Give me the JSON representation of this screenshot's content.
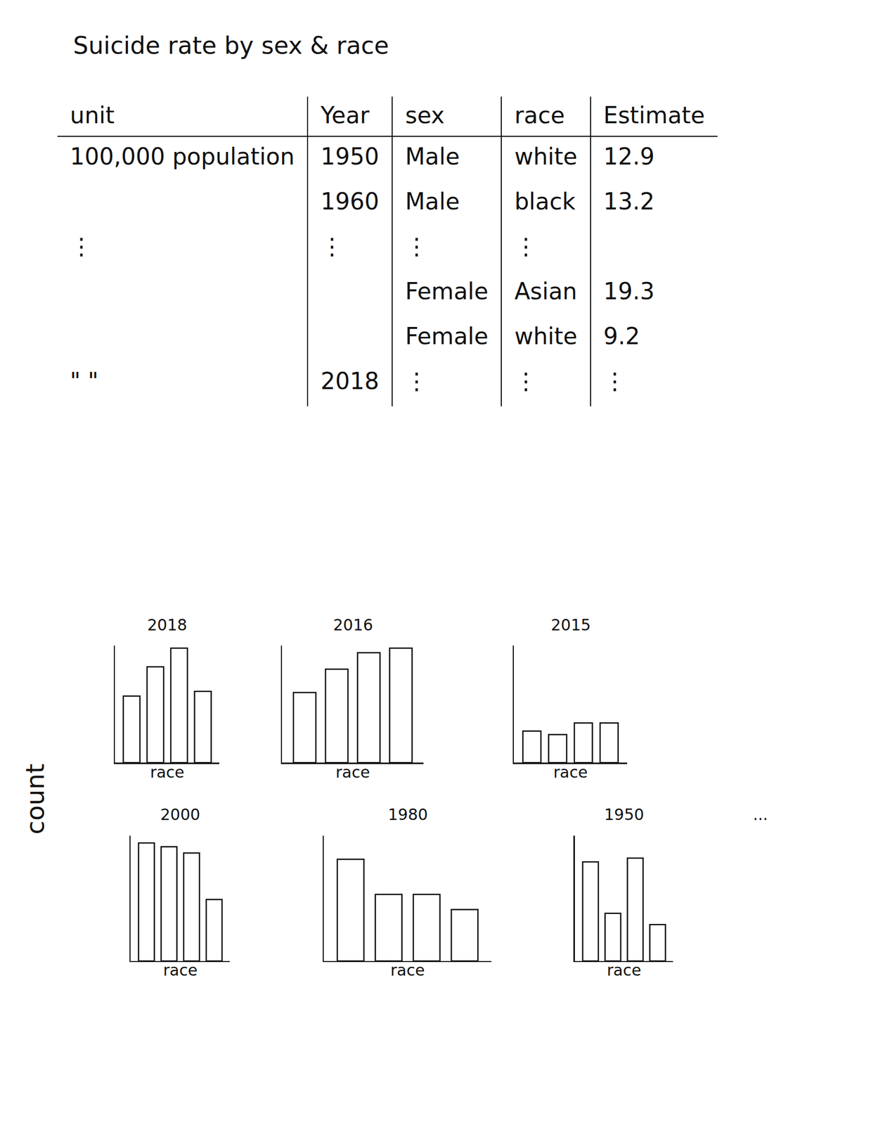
{
  "title": "Suicide rate by sex & race",
  "table": {
    "header": [
      "unit",
      "Year",
      "sex",
      "race",
      "Estimate"
    ],
    "rows": [
      [
        "100,000 population",
        "1950",
        "Male",
        "white",
        "12.9"
      ],
      [
        null,
        "1960",
        "Male",
        "black",
        "13.2"
      ],
      [
        "⋮",
        "⋮",
        "⋮",
        "⋮",
        null
      ],
      [
        null,
        null,
        "Female",
        "Asian",
        "19.3"
      ],
      [
        null,
        null,
        "Female",
        "white",
        "9.2"
      ],
      [
        "\"    \"",
        "2018",
        "⋮",
        "⋮",
        "⋮"
      ]
    ]
  },
  "shared_y_label": "count",
  "more": "...",
  "chart_data": [
    {
      "type": "bar",
      "title": "2018",
      "x_label": "race",
      "categories": [
        null,
        null,
        null,
        null
      ],
      "values": [
        5.7,
        8.2,
        9.8,
        6.1
      ],
      "ylim": [
        0,
        10
      ],
      "color": "#ffffff",
      "tick_labels": false
    },
    {
      "type": "bar",
      "title": "2016",
      "x_label": "race",
      "categories": [
        null,
        null,
        null,
        null
      ],
      "values": [
        6.0,
        8.0,
        9.4,
        9.8
      ],
      "ylim": [
        0,
        10
      ],
      "color": "#ffffff",
      "tick_labels": false
    },
    {
      "type": "bar",
      "title": "2015",
      "x_label": "race",
      "categories": [
        null,
        null,
        null,
        null
      ],
      "values": [
        2.7,
        2.4,
        3.4,
        3.4
      ],
      "ylim": [
        0,
        10
      ],
      "color": "#ffffff",
      "tick_labels": false
    },
    {
      "type": "bar",
      "title": "2000",
      "x_label": "race",
      "categories": [
        null,
        null,
        null,
        null
      ],
      "values": [
        9.4,
        9.1,
        8.6,
        4.9
      ],
      "ylim": [
        0,
        10
      ],
      "color": "#ffffff",
      "tick_labels": false
    },
    {
      "type": "bar",
      "title": "1980",
      "x_label": "race",
      "categories": [
        null,
        null,
        null,
        null
      ],
      "values": [
        8.1,
        5.3,
        5.3,
        4.1
      ],
      "ylim": [
        0,
        10
      ],
      "color": "#ffffff",
      "tick_labels": false
    },
    {
      "type": "bar",
      "title": "1950",
      "x_label": "race",
      "categories": [
        null,
        null,
        null,
        null
      ],
      "values": [
        7.9,
        3.8,
        8.2,
        2.9
      ],
      "ylim": [
        0,
        10
      ],
      "color": "#ffffff",
      "tick_labels": false
    }
  ]
}
